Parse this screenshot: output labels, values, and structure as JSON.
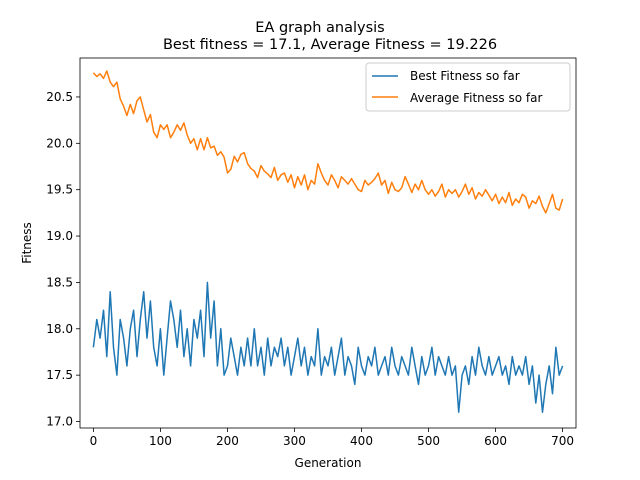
{
  "chart_data": {
    "type": "line",
    "title_line1": "EA graph analysis",
    "title_line2": "Best fitness = 17.1, Average Fitness = 19.226",
    "xlabel": "Generation",
    "ylabel": "Fitness",
    "xlim": [
      -20,
      720
    ],
    "ylim": [
      16.93,
      20.92
    ],
    "xticks": [
      0,
      100,
      200,
      300,
      400,
      500,
      600,
      700
    ],
    "yticks": [
      17.0,
      17.5,
      18.0,
      18.5,
      19.0,
      19.5,
      20.0,
      20.5
    ],
    "xtick_labels": [
      "0",
      "100",
      "200",
      "300",
      "400",
      "500",
      "600",
      "700"
    ],
    "ytick_labels": [
      "17.0",
      "17.5",
      "18.0",
      "18.5",
      "19.0",
      "19.5",
      "20.0",
      "20.5"
    ],
    "legend_position": "top-right",
    "grid": false,
    "series": [
      {
        "name": "Best Fitness so far",
        "color": "#1f77b4",
        "x": [
          0,
          5,
          10,
          15,
          20,
          25,
          30,
          35,
          40,
          45,
          50,
          55,
          60,
          65,
          70,
          75,
          80,
          85,
          90,
          95,
          100,
          105,
          110,
          115,
          120,
          125,
          130,
          135,
          140,
          145,
          150,
          155,
          160,
          165,
          170,
          175,
          180,
          185,
          190,
          195,
          200,
          205,
          210,
          215,
          220,
          225,
          230,
          235,
          240,
          245,
          250,
          255,
          260,
          265,
          270,
          275,
          280,
          285,
          290,
          295,
          300,
          305,
          310,
          315,
          320,
          325,
          330,
          335,
          340,
          345,
          350,
          355,
          360,
          365,
          370,
          375,
          380,
          385,
          390,
          395,
          400,
          405,
          410,
          415,
          420,
          425,
          430,
          435,
          440,
          445,
          450,
          455,
          460,
          465,
          470,
          475,
          480,
          485,
          490,
          495,
          500,
          505,
          510,
          515,
          520,
          525,
          530,
          535,
          540,
          545,
          550,
          555,
          560,
          565,
          570,
          575,
          580,
          585,
          590,
          595,
          600,
          605,
          610,
          615,
          620,
          625,
          630,
          635,
          640,
          645,
          650,
          655,
          660,
          665,
          670,
          675,
          680,
          685,
          690,
          695,
          700
        ],
        "y": [
          17.8,
          18.1,
          17.9,
          18.2,
          17.7,
          18.4,
          17.8,
          17.5,
          18.1,
          17.9,
          17.6,
          18.0,
          18.2,
          17.7,
          18.1,
          18.4,
          17.9,
          18.3,
          17.8,
          17.6,
          18.0,
          17.5,
          17.9,
          18.3,
          18.1,
          17.8,
          18.2,
          17.7,
          18.0,
          17.6,
          18.1,
          17.9,
          18.2,
          17.7,
          18.5,
          17.9,
          18.3,
          17.6,
          18.0,
          17.5,
          17.6,
          17.9,
          17.7,
          17.5,
          17.8,
          17.6,
          17.9,
          17.6,
          18.0,
          17.6,
          17.8,
          17.5,
          17.9,
          17.6,
          17.8,
          17.7,
          17.9,
          17.6,
          17.8,
          17.5,
          17.7,
          17.9,
          17.6,
          17.8,
          17.5,
          17.7,
          17.6,
          18.0,
          17.5,
          17.7,
          17.6,
          17.8,
          17.5,
          17.7,
          17.9,
          17.5,
          17.7,
          17.6,
          17.4,
          17.8,
          17.6,
          17.5,
          17.7,
          17.6,
          17.8,
          17.5,
          17.6,
          17.7,
          17.5,
          17.8,
          17.6,
          17.5,
          17.7,
          17.6,
          17.5,
          17.8,
          17.6,
          17.4,
          17.7,
          17.5,
          17.6,
          17.8,
          17.5,
          17.7,
          17.6,
          17.5,
          17.7,
          17.5,
          17.6,
          17.1,
          17.5,
          17.6,
          17.4,
          17.7,
          17.5,
          17.8,
          17.6,
          17.5,
          17.7,
          17.5,
          17.6,
          17.7,
          17.5,
          17.6,
          17.4,
          17.7,
          17.5,
          17.6,
          17.5,
          17.7,
          17.4,
          17.6,
          17.2,
          17.5,
          17.1,
          17.4,
          17.6,
          17.3,
          17.8,
          17.5,
          17.6
        ]
      },
      {
        "name": "Average Fitness so far",
        "color": "#ff7f0e",
        "x": [
          0,
          5,
          10,
          15,
          20,
          25,
          30,
          35,
          40,
          45,
          50,
          55,
          60,
          65,
          70,
          75,
          80,
          85,
          90,
          95,
          100,
          105,
          110,
          115,
          120,
          125,
          130,
          135,
          140,
          145,
          150,
          155,
          160,
          165,
          170,
          175,
          180,
          185,
          190,
          195,
          200,
          205,
          210,
          215,
          220,
          225,
          230,
          235,
          240,
          245,
          250,
          255,
          260,
          265,
          270,
          275,
          280,
          285,
          290,
          295,
          300,
          305,
          310,
          315,
          320,
          325,
          330,
          335,
          340,
          345,
          350,
          355,
          360,
          365,
          370,
          375,
          380,
          385,
          390,
          395,
          400,
          405,
          410,
          415,
          420,
          425,
          430,
          435,
          440,
          445,
          450,
          455,
          460,
          465,
          470,
          475,
          480,
          485,
          490,
          495,
          500,
          505,
          510,
          515,
          520,
          525,
          530,
          535,
          540,
          545,
          550,
          555,
          560,
          565,
          570,
          575,
          580,
          585,
          590,
          595,
          600,
          605,
          610,
          615,
          620,
          625,
          630,
          635,
          640,
          645,
          650,
          655,
          660,
          665,
          670,
          675,
          680,
          685,
          690,
          695,
          700
        ],
        "y": [
          20.76,
          20.72,
          20.75,
          20.7,
          20.78,
          20.66,
          20.61,
          20.66,
          20.48,
          20.4,
          20.3,
          20.42,
          20.32,
          20.46,
          20.5,
          20.36,
          20.23,
          20.31,
          20.12,
          20.06,
          20.2,
          20.15,
          20.2,
          20.06,
          20.12,
          20.2,
          20.14,
          20.22,
          20.09,
          20.0,
          20.05,
          19.93,
          20.05,
          19.93,
          20.06,
          19.95,
          19.97,
          19.87,
          19.91,
          19.85,
          19.68,
          19.72,
          19.86,
          19.8,
          19.88,
          19.9,
          19.78,
          19.73,
          19.7,
          19.63,
          19.76,
          19.7,
          19.67,
          19.63,
          19.74,
          19.6,
          19.66,
          19.68,
          19.58,
          19.66,
          19.52,
          19.64,
          19.55,
          19.66,
          19.5,
          19.6,
          19.56,
          19.78,
          19.68,
          19.6,
          19.55,
          19.66,
          19.6,
          19.52,
          19.64,
          19.6,
          19.56,
          19.62,
          19.56,
          19.5,
          19.48,
          19.6,
          19.55,
          19.58,
          19.62,
          19.68,
          19.55,
          19.6,
          19.46,
          19.58,
          19.5,
          19.48,
          19.52,
          19.64,
          19.56,
          19.47,
          19.56,
          19.5,
          19.6,
          19.5,
          19.45,
          19.5,
          19.43,
          19.48,
          19.56,
          19.42,
          19.5,
          19.46,
          19.5,
          19.42,
          19.48,
          19.56,
          19.45,
          19.52,
          19.4,
          19.47,
          19.43,
          19.5,
          19.44,
          19.38,
          19.45,
          19.35,
          19.42,
          19.36,
          19.47,
          19.33,
          19.4,
          19.36,
          19.45,
          19.42,
          19.3,
          19.38,
          19.35,
          19.43,
          19.32,
          19.25,
          19.35,
          19.45,
          19.3,
          19.28,
          19.4
        ]
      }
    ]
  }
}
